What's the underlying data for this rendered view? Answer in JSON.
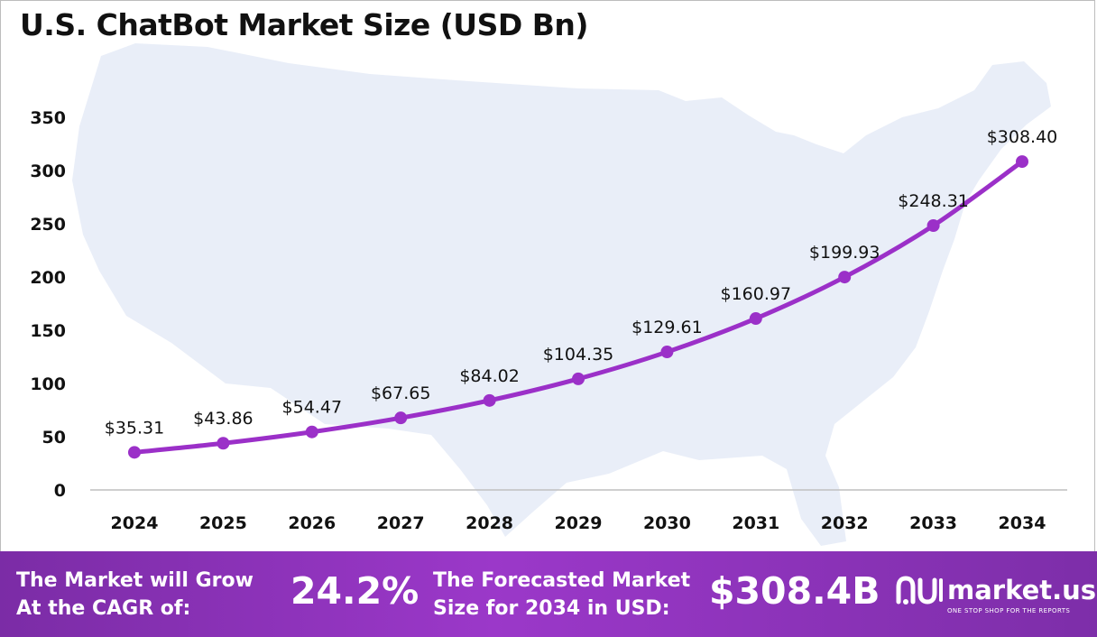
{
  "colors": {
    "line": "#9b30c8",
    "marker": "#9b30c8",
    "map_fill": "#e9eef8",
    "footer_bg": "#8a33b8",
    "axis": "#bfbfbf"
  },
  "chart_data": {
    "type": "line",
    "title": "U.S. ChatBot Market Size (USD Bn)",
    "xlabel": "",
    "ylabel": "",
    "categories": [
      "2024",
      "2025",
      "2026",
      "2027",
      "2028",
      "2029",
      "2030",
      "2031",
      "2032",
      "2033",
      "2034"
    ],
    "values": [
      35.31,
      43.86,
      54.47,
      67.65,
      84.02,
      104.35,
      129.61,
      160.97,
      199.93,
      248.31,
      308.4
    ],
    "data_labels": [
      "$35.31",
      "$43.86",
      "$54.47",
      "$67.65",
      "$84.02",
      "$104.35",
      "$129.61",
      "$160.97",
      "$199.93",
      "$248.31",
      "$308.40"
    ],
    "ylim": [
      0,
      350
    ],
    "yticks": [
      0,
      50,
      100,
      150,
      200,
      250,
      300,
      350
    ],
    "grid": false,
    "legend": "none"
  },
  "footer": {
    "cagr_label": "The Market will Grow\nAt the CAGR of:",
    "cagr_value": "24.2%",
    "forecast_label": "The Forecasted Market\nSize for 2034 in USD:",
    "forecast_value": "$308.4B",
    "brand_name": "market.us",
    "brand_tagline": "ONE STOP SHOP FOR THE REPORTS",
    "brand_icon": "market-us-logo-icon"
  }
}
